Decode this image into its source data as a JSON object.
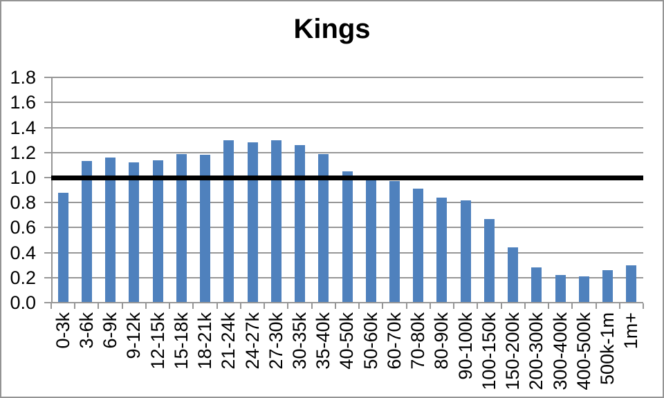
{
  "chart_data": {
    "type": "bar",
    "title": "Kings",
    "categories": [
      "0-3k",
      "3-6k",
      "6-9k",
      "9-12k",
      "12-15k",
      "15-18k",
      "18-21k",
      "21-24k",
      "24-27k",
      "27-30k",
      "30-35k",
      "35-40k",
      "40-50k",
      "50-60k",
      "60-70k",
      "70-80k",
      "80-90k",
      "90-100k",
      "100-150k",
      "150-200k",
      "200-300k",
      "300-400k",
      "400-500k",
      "500k-1m",
      "1m+"
    ],
    "values": [
      0.88,
      1.13,
      1.16,
      1.12,
      1.14,
      1.19,
      1.18,
      1.3,
      1.28,
      1.3,
      1.26,
      1.19,
      1.05,
      0.99,
      0.97,
      0.91,
      0.84,
      0.82,
      0.67,
      0.44,
      0.28,
      0.22,
      0.21,
      0.26,
      0.3
    ],
    "xlabel": "",
    "ylabel": "",
    "ylim": [
      0,
      1.8
    ],
    "ytick_step": 0.2,
    "ytick_labels": [
      "1.8",
      "1.6",
      "1.4",
      "1.2",
      "1.0",
      "0.8",
      "0.6",
      "0.4",
      "0.2",
      "0.0"
    ],
    "reference_line": {
      "value": 1.0,
      "color": "#000000"
    },
    "grid": true,
    "legend": false,
    "colors": {
      "bar": "#4F81BD",
      "gridline": "#969696",
      "axis": "#969696",
      "border": "#949494",
      "text": "#000000",
      "background": "#FFFFFF"
    }
  }
}
